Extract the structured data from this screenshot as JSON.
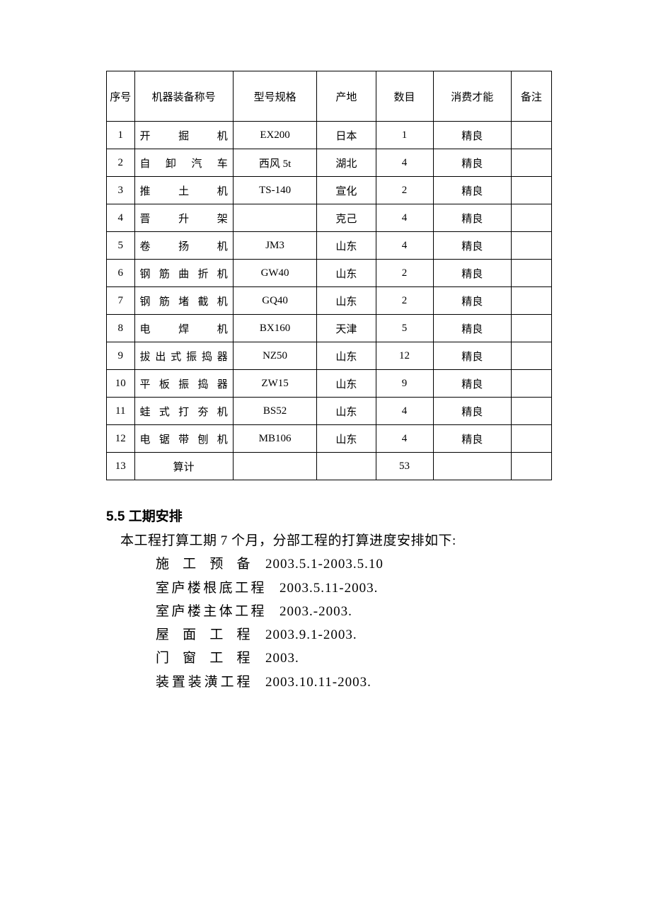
{
  "table": {
    "headers": {
      "seq": "序号",
      "name": "机器装备称号",
      "model": "型号规格",
      "origin": "产地",
      "qty": "数目",
      "perf": "消费才能",
      "remark": "备注"
    },
    "rows": [
      {
        "seq": "1",
        "name": "开掘机",
        "model": "EX200",
        "origin": "日本",
        "qty": "1",
        "perf": "精良",
        "remark": ""
      },
      {
        "seq": "2",
        "name": "自卸汽车",
        "model": "西风 5t",
        "origin": "湖北",
        "qty": "4",
        "perf": "精良",
        "remark": ""
      },
      {
        "seq": "3",
        "name": "推土机",
        "model": "TS-140",
        "origin": "宣化",
        "qty": "2",
        "perf": "精良",
        "remark": ""
      },
      {
        "seq": "4",
        "name": "晋升架",
        "model": "",
        "origin": "克己",
        "qty": "4",
        "perf": "精良",
        "remark": ""
      },
      {
        "seq": "5",
        "name": "卷扬机",
        "model": "JM3",
        "origin": "山东",
        "qty": "4",
        "perf": "精良",
        "remark": ""
      },
      {
        "seq": "6",
        "name": "钢筋曲折机",
        "model": "GW40",
        "origin": "山东",
        "qty": "2",
        "perf": "精良",
        "remark": ""
      },
      {
        "seq": "7",
        "name": "钢筋堵截机",
        "model": "GQ40",
        "origin": "山东",
        "qty": "2",
        "perf": "精良",
        "remark": ""
      },
      {
        "seq": "8",
        "name": "电焊机",
        "model": "BX160",
        "origin": "天津",
        "qty": "5",
        "perf": "精良",
        "remark": ""
      },
      {
        "seq": "9",
        "name": "拔出式振捣器",
        "model": "NZ50",
        "origin": "山东",
        "qty": "12",
        "perf": "精良",
        "remark": ""
      },
      {
        "seq": "10",
        "name": "平板振捣器",
        "model": "ZW15",
        "origin": "山东",
        "qty": "9",
        "perf": "精良",
        "remark": ""
      },
      {
        "seq": "11",
        "name": "蛙式打夯机",
        "model": "BS52",
        "origin": "山东",
        "qty": "4",
        "perf": "精良",
        "remark": ""
      },
      {
        "seq": "12",
        "name": "电锯带刨机",
        "model": "MB106",
        "origin": "山东",
        "qty": "4",
        "perf": "精良",
        "remark": ""
      },
      {
        "seq": "13",
        "name": "算计",
        "model": "",
        "origin": "",
        "qty": "53",
        "perf": "",
        "remark": "",
        "center_name": true
      }
    ]
  },
  "section": {
    "heading": "5.5 工期安排",
    "intro": "本工程打算工期 7 个月，分部工程的打算进度安排如下:",
    "items": [
      {
        "label": "施工预备",
        "date": "2003.5.1-2003.5.10",
        "narrow": true
      },
      {
        "label": "室庐楼根底工程",
        "date": "2003.5.11-2003."
      },
      {
        "label": "室庐楼主体工程",
        "date": "2003.-2003."
      },
      {
        "label": "屋面工程",
        "date": "2003.9.1-2003.",
        "narrow": true
      },
      {
        "label": "门窗工程",
        "date": "2003.",
        "narrow": true
      },
      {
        "label": "装置装潢工程",
        "date": "2003.10.11-2003.",
        "narrow": true
      }
    ]
  }
}
